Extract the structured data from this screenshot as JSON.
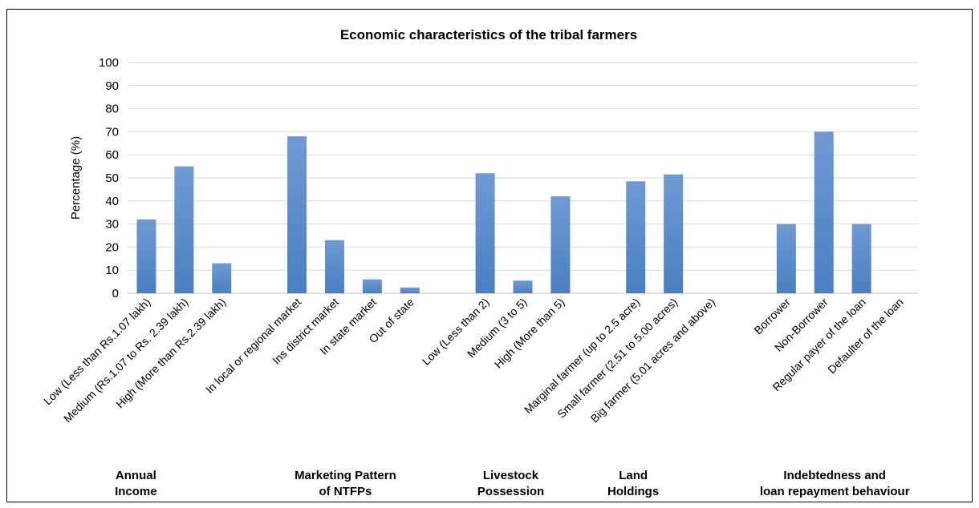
{
  "chart_data": {
    "type": "bar",
    "title": "Economic characteristics of the tribal farmers",
    "ylabel": "Percentage (%)",
    "xlabel": "",
    "ylim": [
      0,
      100
    ],
    "yticks": [
      0,
      10,
      20,
      30,
      40,
      50,
      60,
      70,
      80,
      90,
      100
    ],
    "grid": true,
    "legend": "none",
    "bar_color": "#4a7fc1",
    "categories": [
      "Low (Less than Rs.1.07 lakh)",
      "Medium (Rs.1.07 to Rs. 2.39 lakh)",
      "High (More than Rs.2.39 lakh)",
      "",
      "In local or regional market",
      "Ins district market",
      "In state market",
      "Out of state",
      "",
      "Low (Less than 2)",
      "Medium (3 to 5)",
      "High (More than 5)",
      "",
      "Marginal farmer (up to 2.5 acre)",
      "Small farmer (2.51 to 5.00 acres)",
      "Big farmer (5.01 acres and above)",
      "",
      "Borrower",
      "Non-Borrower",
      "Regular payer of the loan",
      "Defaulter of the loan"
    ],
    "values": [
      32,
      55,
      13,
      null,
      68,
      23,
      6,
      2.5,
      null,
      52,
      5.5,
      42,
      null,
      48.5,
      51.5,
      0,
      null,
      30,
      70,
      30,
      0
    ],
    "groups": [
      {
        "lines": [
          "Annual",
          "Income"
        ],
        "start": 0,
        "end": 2
      },
      {
        "lines": [
          "Marketing Pattern",
          "of NTFPs"
        ],
        "start": 4,
        "end": 7
      },
      {
        "lines": [
          "Livestock",
          "Possession"
        ],
        "start": 9,
        "end": 11
      },
      {
        "lines": [
          "Land",
          "Holdings"
        ],
        "start": 13,
        "end": 15
      },
      {
        "lines": [
          "Indebtedness and",
          "loan repayment behaviour"
        ],
        "start": 17,
        "end": 20
      }
    ]
  }
}
